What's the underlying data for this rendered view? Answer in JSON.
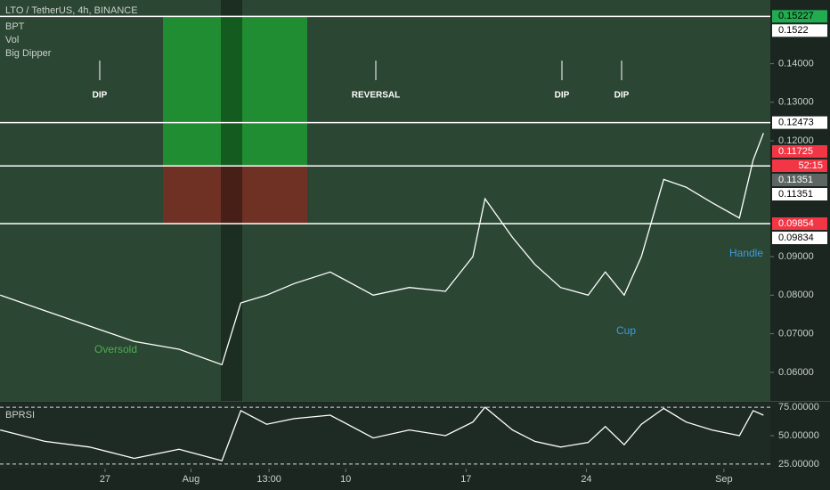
{
  "chart_data": [
    {
      "type": "line",
      "title": "LTO / TetherUS, 4h, BINANCE",
      "indicators": [
        "BPT",
        "Vol",
        "Big Dipper"
      ],
      "x": [
        19.9,
        22.5,
        25.1,
        27.7,
        30.3,
        32.8,
        33.9,
        35.4,
        37.0,
        39.1,
        41.6,
        43.7,
        45.8,
        47.4,
        48.1,
        49.7,
        51.0,
        52.5,
        54.1,
        55.1,
        56.2,
        57.2,
        58.5,
        59.8,
        61.3,
        62.9,
        63.7,
        64.3
      ],
      "series": [
        {
          "color": "#ffffff",
          "values": [
            0.08,
            0.076,
            0.072,
            0.068,
            0.066,
            0.062,
            0.078,
            0.08,
            0.083,
            0.086,
            0.08,
            0.082,
            0.081,
            0.09,
            0.105,
            0.095,
            0.088,
            0.082,
            0.08,
            0.086,
            0.08,
            0.09,
            0.11,
            0.108,
            0.104,
            0.1,
            0.115,
            0.122
          ]
        }
      ],
      "xlim": [
        19.89,
        64.7
      ],
      "xticks": [
        {
          "value": 26,
          "label": "27"
        },
        {
          "value": 31,
          "label": "Aug"
        },
        {
          "value": 35.54,
          "label": "13:00"
        },
        {
          "value": 40,
          "label": "10"
        },
        {
          "value": 47,
          "label": "17"
        },
        {
          "value": 54,
          "label": "24"
        },
        {
          "value": 62,
          "label": "Sep"
        }
      ],
      "ylim": [
        0.0526,
        0.1565
      ],
      "yticks": [
        {
          "value": 0.14,
          "label": "0.14000"
        },
        {
          "value": 0.13,
          "label": "0.13000"
        },
        {
          "value": 0.12,
          "label": "0.12000"
        },
        {
          "value": 0.09,
          "label": "0.09000"
        },
        {
          "value": 0.08,
          "label": "0.08000"
        },
        {
          "value": 0.07,
          "label": "0.07000"
        },
        {
          "value": 0.06,
          "label": "0.06000"
        }
      ],
      "levels": [
        0.15227,
        0.12473,
        0.11351,
        0.09854
      ],
      "price_markers": [
        {
          "value": 0.15227,
          "color": "#22ab50"
        },
        {
          "value": 0.1522,
          "color": "#ffffff"
        },
        {
          "value": 0.12473,
          "color": "#ffffff"
        },
        {
          "value": 0.11725,
          "color": "#f23645"
        },
        {
          "value": 0.11351,
          "color": "#5d6663"
        },
        {
          "value": 0.11351,
          "color": "#ffffff"
        },
        {
          "value": 0.09854,
          "color": "#f23645"
        },
        {
          "value": 0.09834,
          "color": "#ffffff"
        }
      ],
      "countdown": "52:15",
      "annotations": [
        "DIP",
        "REVERSAL",
        "DIP",
        "DIP",
        "Oversold",
        "Cup",
        "Handle"
      ]
    },
    {
      "type": "line",
      "title": "BPRSI",
      "series": [
        {
          "color": "#ffffff",
          "values": [
            55,
            45,
            40,
            30,
            38,
            28,
            72,
            60,
            65,
            68,
            48,
            55,
            50,
            62,
            75,
            55,
            45,
            40,
            44,
            58,
            42,
            60,
            74,
            62,
            55,
            50,
            72,
            68
          ]
        }
      ],
      "ylim": [
        21,
        79
      ],
      "yticks": [
        {
          "value": 75,
          "label": "75.00000"
        },
        {
          "value": 50,
          "label": "50.00000"
        },
        {
          "value": 25,
          "label": "25.00000"
        }
      ]
    }
  ]
}
